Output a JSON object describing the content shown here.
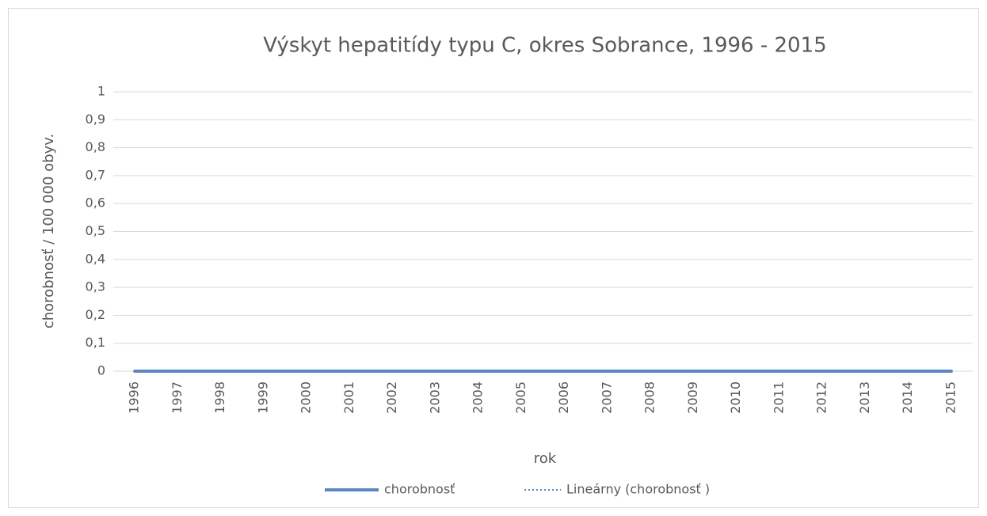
{
  "chart_data": {
    "type": "line",
    "title": "Výskyt hepatitídy typu C, okres Sobrance, 1996 - 2015",
    "xlabel": "rok",
    "ylabel": "chorobnosť / 100 000 obyv.",
    "categories": [
      "1996",
      "1997",
      "1998",
      "1999",
      "2000",
      "2001",
      "2002",
      "2003",
      "2004",
      "2005",
      "2006",
      "2007",
      "2008",
      "2009",
      "2010",
      "2011",
      "2012",
      "2013",
      "2014",
      "2015"
    ],
    "series": [
      {
        "name": "chorobnosť",
        "color": "#5b87c5",
        "style": "solid",
        "values": [
          0,
          0,
          0,
          0,
          0,
          0,
          0,
          0,
          0,
          0,
          0,
          0,
          0,
          0,
          0,
          0,
          0,
          0,
          0,
          0
        ]
      },
      {
        "name": "Lineárny (chorobnosť )",
        "color": "#5b87c5",
        "style": "dotted",
        "values": [
          0,
          0,
          0,
          0,
          0,
          0,
          0,
          0,
          0,
          0,
          0,
          0,
          0,
          0,
          0,
          0,
          0,
          0,
          0,
          0
        ]
      }
    ],
    "ylim": [
      0,
      1
    ],
    "yticks": [
      0,
      {
        "value": 0.1,
        "label": "0,1"
      },
      {
        "value": 0.2,
        "label": "0,2"
      },
      {
        "value": 0.3,
        "label": "0,3"
      },
      {
        "value": 0.4,
        "label": "0,4"
      },
      {
        "value": 0.5,
        "label": "0,5"
      },
      {
        "value": 0.6,
        "label": "0,6"
      },
      {
        "value": 0.7,
        "label": "0,7"
      },
      {
        "value": 0.8,
        "label": "0,8"
      },
      {
        "value": 0.9,
        "label": "0,9"
      },
      1
    ],
    "grid": true,
    "legend": "bottom"
  }
}
